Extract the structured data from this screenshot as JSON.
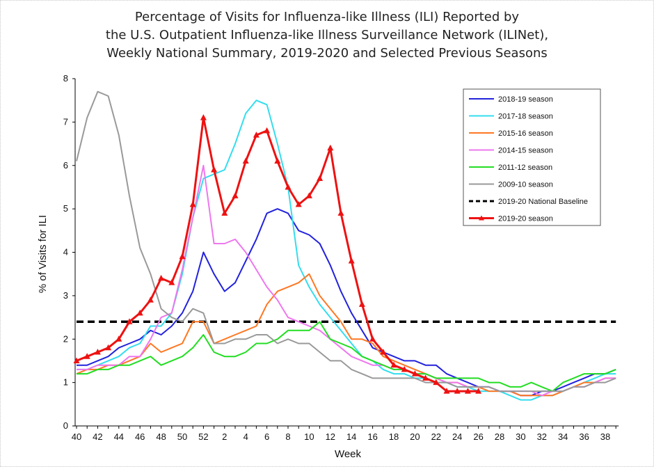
{
  "chart_data": {
    "type": "line",
    "title": [
      "Percentage of Visits for Influenza-like Illness (ILI) Reported by",
      "the U.S. Outpatient Influenza-like Illness Surveillance Network (ILINet),",
      "Weekly National Summary, 2019-2020 and Selected Previous Seasons"
    ],
    "xlabel": "Week",
    "ylabel": "% of Visits for ILI",
    "ylim": [
      0,
      8
    ],
    "yticks": [
      "0",
      "1",
      "2",
      "3",
      "4",
      "5",
      "6",
      "7",
      "8"
    ],
    "x_weeks": [
      40,
      41,
      42,
      43,
      44,
      45,
      46,
      47,
      48,
      49,
      50,
      51,
      52,
      1,
      2,
      3,
      4,
      5,
      6,
      7,
      8,
      9,
      10,
      11,
      12,
      13,
      14,
      15,
      16,
      17,
      18,
      19,
      20,
      21,
      22,
      23,
      24,
      25,
      26,
      27,
      28,
      29,
      30,
      31,
      32,
      33,
      34,
      35,
      36,
      37,
      38,
      39
    ],
    "xtick_labels": [
      "40",
      "42",
      "44",
      "46",
      "48",
      "50",
      "52",
      "2",
      "4",
      "6",
      "8",
      "10",
      "12",
      "14",
      "16",
      "18",
      "20",
      "22",
      "24",
      "26",
      "28",
      "30",
      "32",
      "34",
      "36",
      "38"
    ],
    "legend_position": "top-right",
    "baseline": {
      "name": "2019-20 National Baseline",
      "value": 2.4,
      "color": "#000000"
    },
    "series": [
      {
        "name": "2018-19 season",
        "color": "#2222dd",
        "values": [
          1.4,
          1.4,
          1.5,
          1.6,
          1.8,
          1.9,
          2.0,
          2.2,
          2.1,
          2.3,
          2.6,
          3.1,
          4.0,
          3.5,
          3.1,
          3.3,
          3.8,
          4.3,
          4.9,
          5.0,
          4.9,
          4.5,
          4.4,
          4.2,
          3.7,
          3.1,
          2.6,
          2.2,
          1.8,
          1.7,
          1.6,
          1.5,
          1.5,
          1.4,
          1.4,
          1.2,
          1.1,
          1.0,
          0.9,
          0.9,
          0.8,
          0.8,
          0.7,
          0.7,
          0.8,
          0.8,
          0.9,
          1.0,
          1.1,
          1.2,
          1.2,
          1.3
        ]
      },
      {
        "name": "2017-18 season",
        "color": "#33ddee",
        "values": [
          1.3,
          1.3,
          1.4,
          1.5,
          1.6,
          1.8,
          1.9,
          2.3,
          2.3,
          2.6,
          3.5,
          4.8,
          5.7,
          5.8,
          5.9,
          6.5,
          7.2,
          7.5,
          7.4,
          6.5,
          5.5,
          3.7,
          3.2,
          2.8,
          2.5,
          2.2,
          1.9,
          1.6,
          1.5,
          1.3,
          1.2,
          1.2,
          1.1,
          1.1,
          1.0,
          1.0,
          0.9,
          0.9,
          0.8,
          0.8,
          0.8,
          0.7,
          0.6,
          0.6,
          0.7,
          0.7,
          0.8,
          0.9,
          1.0,
          1.1,
          1.2,
          1.2
        ]
      },
      {
        "name": "2015-16 season",
        "color": "#ff7722",
        "values": [
          1.2,
          1.3,
          1.3,
          1.4,
          1.4,
          1.5,
          1.6,
          1.9,
          1.7,
          1.8,
          1.9,
          2.4,
          2.4,
          1.9,
          2.0,
          2.1,
          2.2,
          2.3,
          2.8,
          3.1,
          3.2,
          3.3,
          3.5,
          3.0,
          2.7,
          2.4,
          2.0,
          2.0,
          1.9,
          1.6,
          1.5,
          1.4,
          1.3,
          1.2,
          1.1,
          1.0,
          1.0,
          0.9,
          0.9,
          0.8,
          0.8,
          0.8,
          0.7,
          0.7,
          0.7,
          0.7,
          0.8,
          0.9,
          1.0,
          1.0,
          1.1,
          1.1
        ]
      },
      {
        "name": "2014-15 season",
        "color": "#ee77ee",
        "values": [
          1.3,
          1.3,
          1.4,
          1.4,
          1.4,
          1.6,
          1.6,
          2.0,
          2.5,
          2.6,
          3.6,
          4.8,
          6.0,
          4.2,
          4.2,
          4.3,
          4.0,
          3.6,
          3.2,
          2.9,
          2.5,
          2.4,
          2.3,
          2.2,
          2.0,
          1.8,
          1.6,
          1.5,
          1.4,
          1.4,
          1.3,
          1.3,
          1.2,
          1.2,
          1.1,
          1.0,
          1.0,
          0.9,
          0.9,
          0.9,
          0.8,
          0.8,
          0.8,
          0.8,
          0.7,
          0.8,
          0.8,
          0.9,
          0.9,
          1.0,
          1.1,
          1.1
        ]
      },
      {
        "name": "2011-12 season",
        "color": "#22dd22",
        "values": [
          1.2,
          1.2,
          1.3,
          1.3,
          1.4,
          1.4,
          1.5,
          1.6,
          1.4,
          1.5,
          1.6,
          1.8,
          2.1,
          1.7,
          1.6,
          1.6,
          1.7,
          1.9,
          1.9,
          2.0,
          2.2,
          2.2,
          2.2,
          2.4,
          2.0,
          1.9,
          1.8,
          1.6,
          1.5,
          1.4,
          1.3,
          1.3,
          1.2,
          1.2,
          1.1,
          1.1,
          1.1,
          1.1,
          1.1,
          1.0,
          1.0,
          0.9,
          0.9,
          1.0,
          0.9,
          0.8,
          1.0,
          1.1,
          1.2,
          1.2,
          1.2,
          1.3
        ]
      },
      {
        "name": "2009-10 season",
        "color": "#999999",
        "values": [
          6.1,
          7.1,
          7.7,
          7.6,
          6.7,
          5.3,
          4.1,
          3.5,
          2.7,
          2.5,
          2.4,
          2.7,
          2.6,
          1.9,
          1.9,
          2.0,
          2.0,
          2.1,
          2.1,
          1.9,
          2.0,
          1.9,
          1.9,
          1.7,
          1.5,
          1.5,
          1.3,
          1.2,
          1.1,
          1.1,
          1.1,
          1.1,
          1.1,
          1.0,
          1.0,
          1.0,
          0.9,
          0.9,
          0.9,
          0.9,
          0.8,
          0.8,
          0.8,
          0.8,
          0.8,
          0.8,
          0.8,
          0.9,
          0.9,
          1.0,
          1.0,
          1.1
        ]
      },
      {
        "name": "2019-20 season",
        "color": "#ee1111",
        "marker": "triangle",
        "values": [
          1.5,
          1.6,
          1.7,
          1.8,
          2.0,
          2.4,
          2.6,
          2.9,
          3.4,
          3.3,
          3.9,
          5.1,
          7.1,
          5.9,
          4.9,
          5.3,
          6.1,
          6.7,
          6.8,
          6.1,
          5.5,
          5.1,
          5.3,
          5.7,
          6.4,
          4.9,
          3.8,
          2.8,
          2.0,
          1.7,
          1.4,
          1.3,
          1.2,
          1.1,
          1.0,
          0.8,
          0.8,
          0.8,
          0.8
        ]
      }
    ]
  }
}
